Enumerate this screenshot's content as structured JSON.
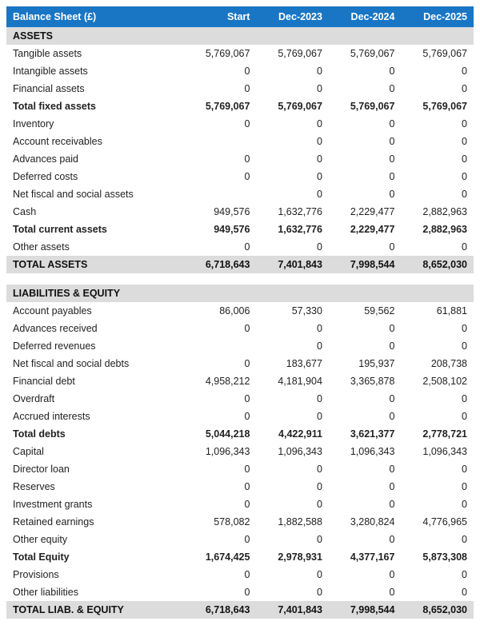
{
  "title": "Balance Sheet (£)",
  "header_bg": "#1976c5",
  "header_fg": "#ffffff",
  "section_bg": "#dcdcdc",
  "columns": [
    "Start",
    "Dec-2023",
    "Dec-2024",
    "Dec-2025"
  ],
  "rows": [
    {
      "type": "section",
      "label": "ASSETS"
    },
    {
      "type": "line",
      "label": "Tangible assets",
      "values": [
        "5,769,067",
        "5,769,067",
        "5,769,067",
        "5,769,067"
      ]
    },
    {
      "type": "line",
      "label": "Intangible assets",
      "values": [
        "0",
        "0",
        "0",
        "0"
      ]
    },
    {
      "type": "line",
      "label": "Financial assets",
      "values": [
        "0",
        "0",
        "0",
        "0"
      ]
    },
    {
      "type": "subtotal",
      "label": "Total fixed assets",
      "values": [
        "5,769,067",
        "5,769,067",
        "5,769,067",
        "5,769,067"
      ]
    },
    {
      "type": "line",
      "label": "Inventory",
      "values": [
        "0",
        "0",
        "0",
        "0"
      ]
    },
    {
      "type": "line",
      "label": "Account receivables",
      "values": [
        "",
        "0",
        "0",
        "0"
      ]
    },
    {
      "type": "line",
      "label": "Advances paid",
      "values": [
        "0",
        "0",
        "0",
        "0"
      ]
    },
    {
      "type": "line",
      "label": "Deferred costs",
      "values": [
        "0",
        "0",
        "0",
        "0"
      ]
    },
    {
      "type": "line",
      "label": "Net fiscal and social assets",
      "values": [
        "",
        "0",
        "0",
        "0"
      ]
    },
    {
      "type": "line",
      "label": "Cash",
      "values": [
        "949,576",
        "1,632,776",
        "2,229,477",
        "2,882,963"
      ]
    },
    {
      "type": "subtotal",
      "label": "Total current assets",
      "values": [
        "949,576",
        "1,632,776",
        "2,229,477",
        "2,882,963"
      ]
    },
    {
      "type": "line",
      "label": "Other assets",
      "values": [
        "0",
        "0",
        "0",
        "0"
      ]
    },
    {
      "type": "grandtotal",
      "label": "TOTAL ASSETS",
      "values": [
        "6,718,643",
        "7,401,843",
        "7,998,544",
        "8,652,030"
      ]
    },
    {
      "type": "spacer"
    },
    {
      "type": "section",
      "label": "LIABILITIES & EQUITY"
    },
    {
      "type": "line",
      "label": "Account payables",
      "values": [
        "86,006",
        "57,330",
        "59,562",
        "61,881"
      ]
    },
    {
      "type": "line",
      "label": "Advances received",
      "values": [
        "0",
        "0",
        "0",
        "0"
      ]
    },
    {
      "type": "line",
      "label": "Deferred revenues",
      "values": [
        "",
        "0",
        "0",
        "0"
      ]
    },
    {
      "type": "line",
      "label": "Net fiscal and social debts",
      "values": [
        "0",
        "183,677",
        "195,937",
        "208,738"
      ]
    },
    {
      "type": "line",
      "label": "Financial debt",
      "values": [
        "4,958,212",
        "4,181,904",
        "3,365,878",
        "2,508,102"
      ]
    },
    {
      "type": "line",
      "label": "Overdraft",
      "values": [
        "0",
        "0",
        "0",
        "0"
      ]
    },
    {
      "type": "line",
      "label": "Accrued interests",
      "values": [
        "0",
        "0",
        "0",
        "0"
      ]
    },
    {
      "type": "subtotal",
      "label": "Total debts",
      "values": [
        "5,044,218",
        "4,422,911",
        "3,621,377",
        "2,778,721"
      ]
    },
    {
      "type": "line",
      "label": "Capital",
      "values": [
        "1,096,343",
        "1,096,343",
        "1,096,343",
        "1,096,343"
      ]
    },
    {
      "type": "line",
      "label": "Director loan",
      "values": [
        "0",
        "0",
        "0",
        "0"
      ]
    },
    {
      "type": "line",
      "label": "Reserves",
      "values": [
        "0",
        "0",
        "0",
        "0"
      ]
    },
    {
      "type": "line",
      "label": "Investment grants",
      "values": [
        "0",
        "0",
        "0",
        "0"
      ]
    },
    {
      "type": "line",
      "label": "Retained earnings",
      "values": [
        "578,082",
        "1,882,588",
        "3,280,824",
        "4,776,965"
      ]
    },
    {
      "type": "line",
      "label": "Other equity",
      "values": [
        "0",
        "0",
        "0",
        "0"
      ]
    },
    {
      "type": "subtotal",
      "label": "Total Equity",
      "values": [
        "1,674,425",
        "2,978,931",
        "4,377,167",
        "5,873,308"
      ]
    },
    {
      "type": "line",
      "label": "Provisions",
      "values": [
        "0",
        "0",
        "0",
        "0"
      ]
    },
    {
      "type": "line",
      "label": "Other liabilities",
      "values": [
        "0",
        "0",
        "0",
        "0"
      ]
    },
    {
      "type": "grandtotal",
      "label": "TOTAL LIAB. & EQUITY",
      "values": [
        "6,718,643",
        "7,401,843",
        "7,998,544",
        "8,652,030"
      ]
    }
  ]
}
